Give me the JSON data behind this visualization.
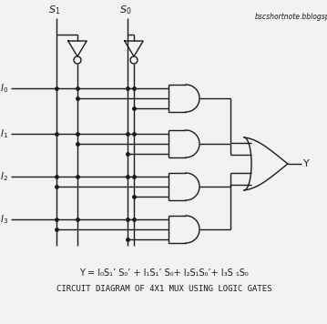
{
  "bg_color": "#f2f2f2",
  "line_color": "#1a1a1a",
  "title_text": "CIRCUIT DIAGRAM OF 4X1 MUX USING LOGIC GATES",
  "formula_text": "Y = I₀S₁’ S₀’ + I₁S₁’ S₀+ I₂S₁S₀’+ I₃S ₁S₀",
  "watermark": "bscshortnote.bblogspot.com",
  "fig_width": 3.59,
  "fig_height": 3.56,
  "dpi": 100
}
